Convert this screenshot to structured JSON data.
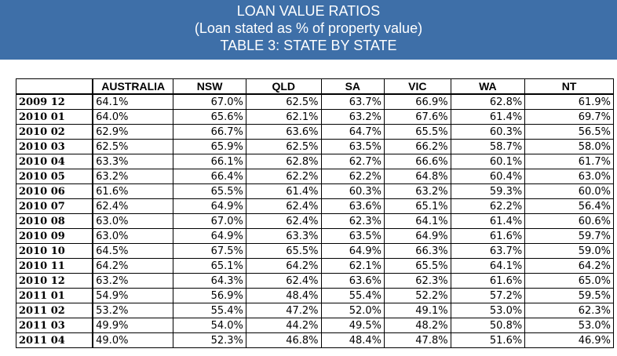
{
  "header": {
    "title": "LOAN VALUE RATIOS",
    "subtitle": "(Loan stated as % of property value)",
    "table_title": "TABLE 3: STATE BY STATE",
    "background_color": "#3e6fa8"
  },
  "table": {
    "columns": [
      "",
      "AUSTRALIA",
      "NSW",
      "QLD",
      "SA",
      "VIC",
      "WA",
      "NT"
    ],
    "rows": [
      {
        "period": "2009 12",
        "values": [
          "64.1%",
          "67.0%",
          "62.5%",
          "63.7%",
          "66.9%",
          "62.8%",
          "61.9%"
        ]
      },
      {
        "period": "2010 01",
        "values": [
          "64.0%",
          "65.6%",
          "62.1%",
          "63.2%",
          "67.6%",
          "61.4%",
          "69.7%"
        ]
      },
      {
        "period": "2010 02",
        "values": [
          "62.9%",
          "66.7%",
          "63.6%",
          "64.7%",
          "65.5%",
          "60.3%",
          "56.5%"
        ]
      },
      {
        "period": "2010 03",
        "values": [
          "62.5%",
          "65.9%",
          "62.5%",
          "63.5%",
          "66.2%",
          "58.7%",
          "58.0%"
        ]
      },
      {
        "period": "2010 04",
        "values": [
          "63.3%",
          "66.1%",
          "62.8%",
          "62.7%",
          "66.6%",
          "60.1%",
          "61.7%"
        ]
      },
      {
        "period": "2010 05",
        "values": [
          "63.2%",
          "66.4%",
          "62.2%",
          "62.2%",
          "64.8%",
          "60.4%",
          "63.0%"
        ]
      },
      {
        "period": "2010 06",
        "values": [
          "61.6%",
          "65.5%",
          "61.4%",
          "60.3%",
          "63.2%",
          "59.3%",
          "60.0%"
        ]
      },
      {
        "period": "2010 07",
        "values": [
          "62.4%",
          "64.9%",
          "62.4%",
          "63.6%",
          "65.1%",
          "62.2%",
          "56.4%"
        ]
      },
      {
        "period": "2010 08",
        "values": [
          "63.0%",
          "67.0%",
          "62.4%",
          "62.3%",
          "64.1%",
          "61.4%",
          "60.6%"
        ]
      },
      {
        "period": "2010 09",
        "values": [
          "63.0%",
          "64.9%",
          "63.3%",
          "63.5%",
          "64.9%",
          "61.6%",
          "59.7%"
        ]
      },
      {
        "period": "2010 10",
        "values": [
          "64.5%",
          "67.5%",
          "65.5%",
          "64.9%",
          "66.3%",
          "63.7%",
          "59.0%"
        ]
      },
      {
        "period": "2010 11",
        "values": [
          "64.2%",
          "65.1%",
          "64.2%",
          "62.1%",
          "65.5%",
          "64.1%",
          "64.2%"
        ]
      },
      {
        "period": "2010 12",
        "values": [
          "63.2%",
          "64.3%",
          "62.4%",
          "63.6%",
          "62.3%",
          "61.6%",
          "65.0%"
        ]
      },
      {
        "period": "2011 01",
        "values": [
          "54.9%",
          "56.9%",
          "48.4%",
          "55.4%",
          "52.2%",
          "57.2%",
          "59.5%"
        ]
      },
      {
        "period": "2011 02",
        "values": [
          "53.2%",
          "55.4%",
          "47.2%",
          "52.0%",
          "49.1%",
          "53.0%",
          "62.3%"
        ]
      },
      {
        "period": "2011 03",
        "values": [
          "49.9%",
          "54.0%",
          "44.2%",
          "49.5%",
          "48.2%",
          "50.8%",
          "53.0%"
        ]
      },
      {
        "period": "2011 04",
        "values": [
          "49.0%",
          "52.3%",
          "46.8%",
          "48.4%",
          "47.8%",
          "51.6%",
          "46.9%"
        ]
      }
    ]
  }
}
